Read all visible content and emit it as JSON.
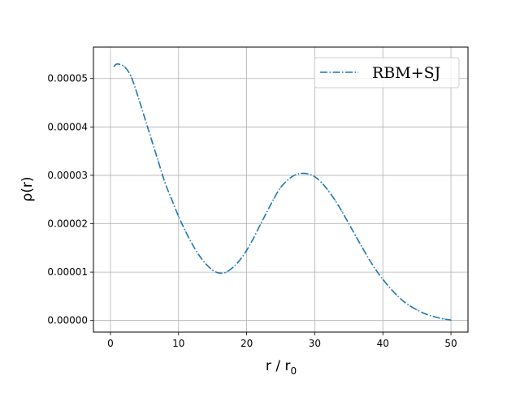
{
  "chart_data": {
    "type": "line",
    "title": "",
    "xlabel": "r / r",
    "xlabel_subscript": "0",
    "ylabel": "ρ(r)",
    "xlim": [
      -2.5,
      52.5
    ],
    "ylim": [
      -2.4e-06,
      5.65e-05
    ],
    "xticks": [
      0,
      10,
      20,
      30,
      40,
      50
    ],
    "xtick_labels": [
      "0",
      "10",
      "20",
      "30",
      "40",
      "50"
    ],
    "yticks": [
      0,
      1e-05,
      2e-05,
      3e-05,
      4e-05,
      5e-05
    ],
    "ytick_labels": [
      "0.00000",
      "0.00001",
      "0.00002",
      "0.00003",
      "0.00004",
      "0.00005"
    ],
    "grid": true,
    "legend_position": "top-right",
    "series": [
      {
        "name": "RBM+SJ",
        "color": "#1f77b4",
        "linestyle": "dashdot",
        "x": [
          0.5,
          1,
          2,
          3,
          4,
          5,
          6,
          7,
          8,
          9,
          10,
          11,
          12,
          13,
          14,
          15,
          16,
          17,
          18,
          19,
          20,
          21,
          22,
          23,
          24,
          25,
          26,
          27,
          28,
          29,
          30,
          31,
          32,
          33,
          34,
          35,
          36,
          37,
          38,
          39,
          40,
          41,
          42,
          43,
          44,
          45,
          46,
          47,
          48,
          49,
          50
        ],
        "y": [
          5.25e-05,
          5.3e-05,
          5.25e-05,
          5.05e-05,
          4.65e-05,
          4.2e-05,
          3.75e-05,
          3.3e-05,
          2.85e-05,
          2.5e-05,
          2.15e-05,
          1.85e-05,
          1.58e-05,
          1.35e-05,
          1.17e-05,
          1.04e-05,
          9.8e-06,
          1e-05,
          1.1e-05,
          1.25e-05,
          1.45e-05,
          1.7e-05,
          1.98e-05,
          2.25e-05,
          2.52e-05,
          2.75e-05,
          2.9e-05,
          3e-05,
          3.04e-05,
          3.03e-05,
          2.97e-05,
          2.85e-05,
          2.68e-05,
          2.48e-05,
          2.25e-05,
          2e-05,
          1.75e-05,
          1.5e-05,
          1.26e-05,
          1.04e-05,
          8.5e-06,
          6.8e-06,
          5.3e-06,
          4e-06,
          3e-06,
          2.2e-06,
          1.5e-06,
          1e-06,
          6e-07,
          3e-07,
          1e-07
        ]
      }
    ]
  }
}
